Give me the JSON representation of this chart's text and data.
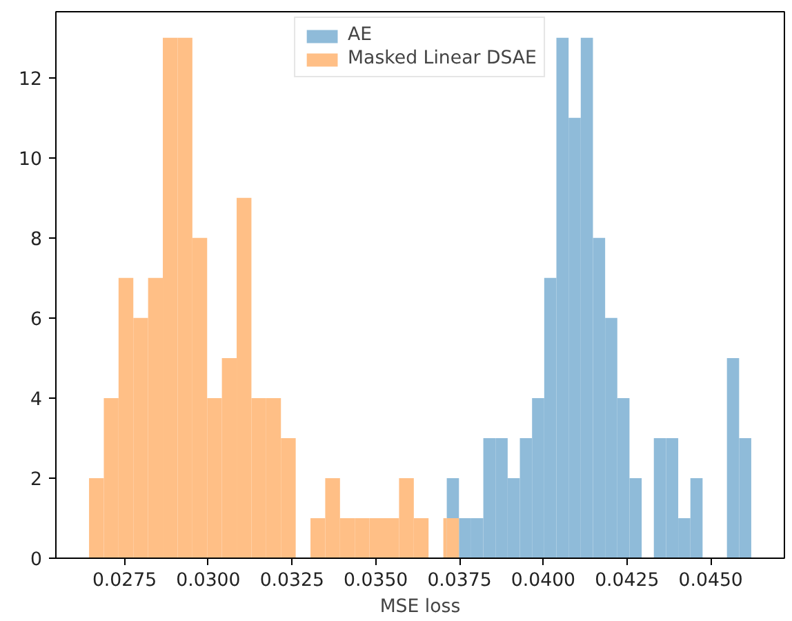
{
  "chart_data": {
    "type": "histogram",
    "xlabel": "MSE loss",
    "bins": [
      0.02644,
      0.026881,
      0.027321,
      0.027762,
      0.028203,
      0.028643,
      0.029084,
      0.029525,
      0.029966,
      0.030406,
      0.030847,
      0.031288,
      0.031728,
      0.032169,
      0.03261,
      0.033051,
      0.033491,
      0.033932,
      0.034373,
      0.034813,
      0.035254,
      0.035695,
      0.036136,
      0.036576,
      0.037017,
      0.03712,
      0.037484,
      0.037847,
      0.038211,
      0.038575,
      0.038938,
      0.039302,
      0.039666,
      0.040029,
      0.040393,
      0.040757,
      0.04112,
      0.041484,
      0.041848,
      0.042211,
      0.042575,
      0.042939,
      0.043302,
      0.043666,
      0.04403,
      0.044393,
      0.044757,
      0.045484,
      0.045848,
      0.04621
    ],
    "series": [
      {
        "name": "AE",
        "color": "#8fbbd9",
        "values": [
          null,
          null,
          null,
          null,
          null,
          null,
          null,
          null,
          null,
          null,
          null,
          null,
          null,
          null,
          null,
          null,
          null,
          null,
          null,
          null,
          null,
          null,
          null,
          null,
          null,
          2,
          1,
          1,
          3,
          3,
          2,
          3,
          4,
          7,
          13,
          11,
          13,
          8,
          6,
          4,
          2,
          0,
          3,
          3,
          1,
          2,
          0,
          5,
          3
        ]
      },
      {
        "name": "Masked Linear DSAE",
        "color": "#ffbf86",
        "values": [
          2,
          4,
          7,
          6,
          7,
          13,
          13,
          8,
          4,
          5,
          9,
          4,
          4,
          3,
          0,
          1,
          2,
          1,
          1,
          1,
          1,
          2,
          1,
          0,
          1,
          1,
          null,
          null,
          null,
          null,
          null,
          null,
          null,
          null,
          null,
          null,
          null,
          null,
          null,
          null,
          null,
          null,
          null,
          null,
          null,
          null,
          null,
          null,
          null
        ]
      }
    ],
    "xlim": [
      0.02545,
      0.0472
    ],
    "ylim": [
      0,
      13.65
    ],
    "xticks": [
      {
        "value": 0.0275,
        "label": "0.0275"
      },
      {
        "value": 0.03,
        "label": "0.0300"
      },
      {
        "value": 0.0325,
        "label": "0.0325"
      },
      {
        "value": 0.035,
        "label": "0.0350"
      },
      {
        "value": 0.0375,
        "label": "0.0375"
      },
      {
        "value": 0.04,
        "label": "0.0400"
      },
      {
        "value": 0.0425,
        "label": "0.0425"
      },
      {
        "value": 0.045,
        "label": "0.0450"
      }
    ],
    "yticks": [
      0,
      2,
      4,
      6,
      8,
      10,
      12
    ],
    "legend": "top",
    "grid": false
  }
}
